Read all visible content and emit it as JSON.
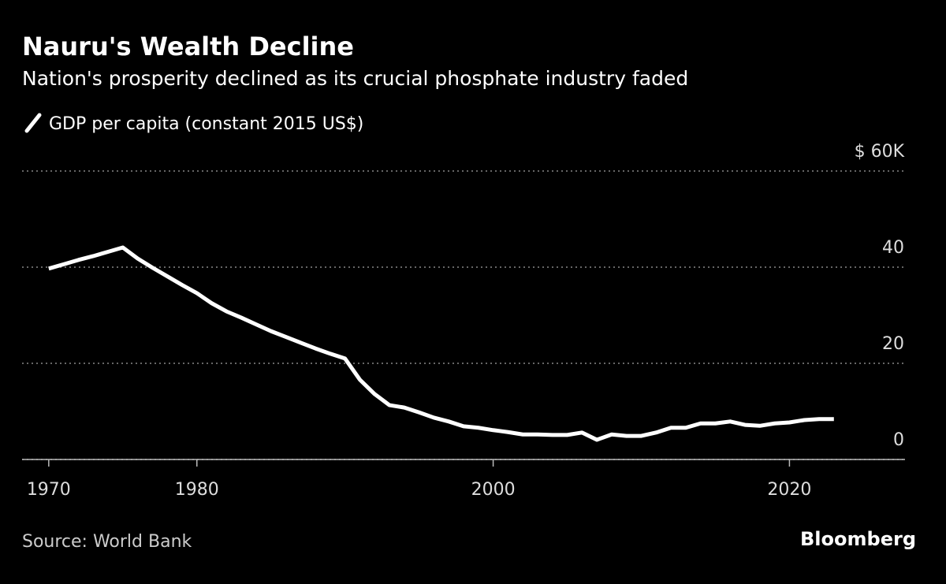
{
  "chart_data": {
    "type": "line",
    "title": "Nauru's Wealth Decline",
    "subtitle": "Nation's prosperity declined as its crucial phosphate industry faded",
    "source": "Source: World Bank",
    "brand": "Bloomberg",
    "x": [
      1970,
      1971,
      1972,
      1973,
      1974,
      1975,
      1976,
      1977,
      1978,
      1979,
      1980,
      1981,
      1982,
      1983,
      1984,
      1985,
      1986,
      1987,
      1988,
      1989,
      1990,
      1991,
      1992,
      1993,
      1994,
      1995,
      1996,
      1997,
      1998,
      1999,
      2000,
      2001,
      2002,
      2003,
      2004,
      2005,
      2006,
      2007,
      2008,
      2009,
      2010,
      2011,
      2012,
      2013,
      2014,
      2015,
      2016,
      2017,
      2018,
      2019,
      2020,
      2021,
      2022,
      2023
    ],
    "series": [
      {
        "name": "GDP per capita (constant 2015 US$)",
        "color": "#ffffff",
        "values": [
          39.7,
          40.6,
          41.5,
          42.3,
          43.2,
          44.1,
          41.8,
          39.9,
          38.1,
          36.3,
          34.6,
          32.5,
          30.8,
          29.5,
          28.1,
          26.7,
          25.5,
          24.3,
          23.1,
          22.0,
          21.0,
          16.6,
          13.6,
          11.3,
          10.8,
          9.8,
          8.7,
          7.9,
          6.9,
          6.6,
          6.1,
          5.7,
          5.2,
          5.2,
          5.1,
          5.1,
          5.6,
          4.1,
          5.2,
          4.9,
          4.9,
          5.6,
          6.6,
          6.6,
          7.5,
          7.5,
          7.9,
          7.2,
          7.0,
          7.5,
          7.7,
          8.2,
          8.4,
          8.4
        ]
      }
    ],
    "xlim": [
      1968.2,
      2027.8
    ],
    "xticks": [
      1970,
      1980,
      2000,
      2020
    ],
    "ylim": [
      0,
      60
    ],
    "yticks": [
      0,
      20,
      40,
      {
        "value": 60,
        "label": "$ 60K"
      }
    ],
    "grid": true
  }
}
